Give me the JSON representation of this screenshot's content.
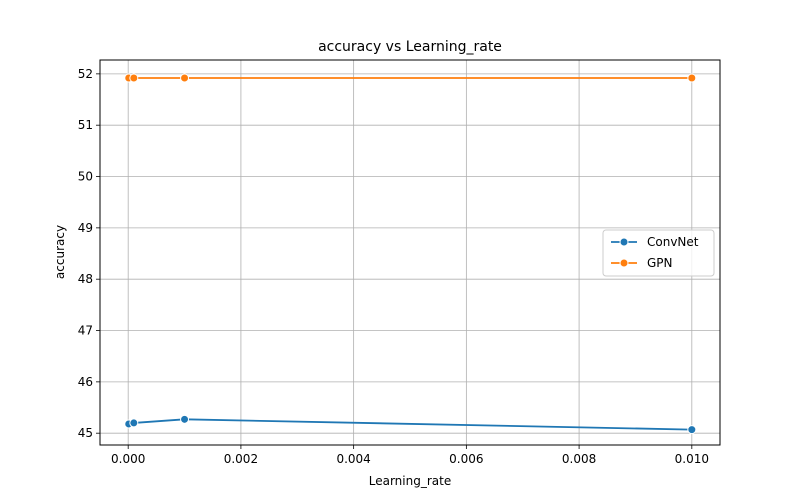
{
  "chart_data": {
    "type": "line",
    "title": "accuracy vs Learning_rate",
    "xlabel": "Learning_rate",
    "ylabel": "accuracy",
    "xlim": [
      -0.0005,
      0.0105
    ],
    "ylim": [
      44.77,
      52.27
    ],
    "xticks": [
      0.0,
      0.002,
      0.004,
      0.006,
      0.008,
      0.01
    ],
    "xtick_labels": [
      "0.000",
      "0.002",
      "0.004",
      "0.006",
      "0.008",
      "0.010"
    ],
    "yticks": [
      45,
      46,
      47,
      48,
      49,
      50,
      51,
      52
    ],
    "ytick_labels": [
      "45",
      "46",
      "47",
      "48",
      "49",
      "50",
      "51",
      "52"
    ],
    "grid": true,
    "legend_position": "center-right",
    "series": [
      {
        "name": "ConvNet",
        "color": "#1f77b4",
        "x": [
          1e-05,
          0.0001,
          0.001,
          0.01
        ],
        "y": [
          45.18,
          45.2,
          45.27,
          45.07
        ]
      },
      {
        "name": "GPN",
        "color": "#ff7f0e",
        "x": [
          1e-05,
          0.0001,
          0.001,
          0.01
        ],
        "y": [
          51.92,
          51.92,
          51.92,
          51.92
        ]
      }
    ]
  }
}
